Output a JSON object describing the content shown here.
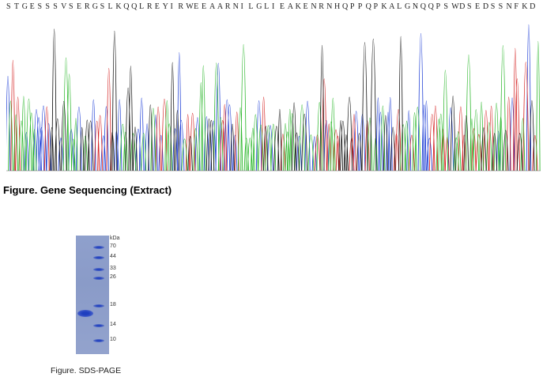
{
  "sequence": [
    "S",
    "T",
    "G",
    "E",
    "S",
    "S",
    "S",
    "V",
    "S",
    "E",
    "R",
    "G",
    "S",
    "L",
    "K",
    "Q",
    "Q",
    "L",
    "R",
    "E",
    "Y",
    "I",
    "R",
    "W",
    "E",
    "E",
    "A",
    "A",
    "R",
    "N",
    "I",
    "L",
    "G",
    "L",
    "I",
    "E",
    "A",
    "K",
    "E",
    "N",
    "R",
    "N",
    "H",
    "Q",
    "P",
    "P",
    "Q",
    "P",
    "K",
    "A",
    "L",
    "G",
    "N",
    "Q",
    "Q",
    "P",
    "S",
    "W",
    "D",
    "S",
    "E",
    "D",
    "S",
    "S",
    "N",
    "F",
    "K",
    "D"
  ],
  "figure1": {
    "caption": "Figure. Gene Sequencing (Extract)"
  },
  "trace_colors": {
    "A": "#2eb82e",
    "C": "#1f3fd6",
    "G": "#111111",
    "T": "#d42020"
  },
  "figure2": {
    "caption": "Figure. SDS-PAGE",
    "unit_label": "kDa",
    "markers": [
      "70",
      "44",
      "33",
      "26",
      "18",
      "14",
      "10"
    ],
    "sample_band_kda": 16
  }
}
